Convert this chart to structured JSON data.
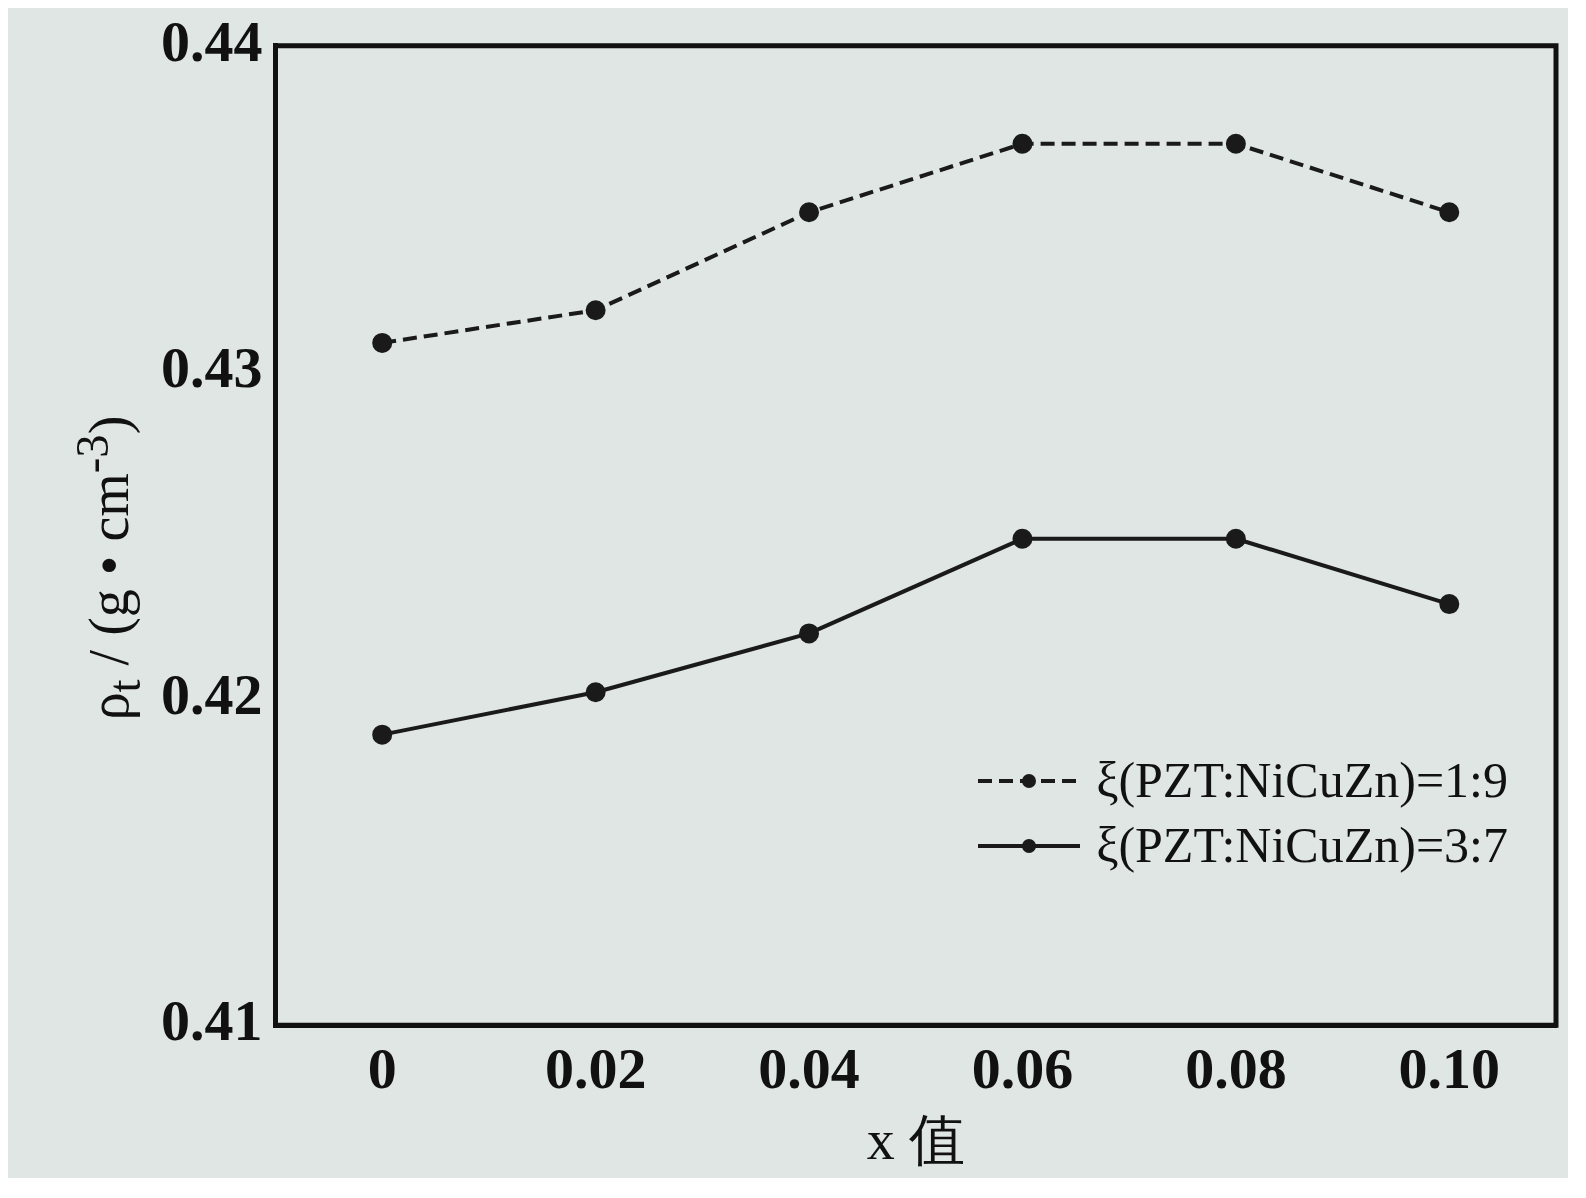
{
  "chart_data": {
    "type": "line",
    "xlabel": "x 值",
    "ylabel": "ρ$_{t}$ / (g • cm$^{-3}$)",
    "xlim": [
      -0.01,
      0.11
    ],
    "xticks": [
      0,
      0.02,
      0.04,
      0.06,
      0.08,
      {
        "value": 0.1,
        "label": "0.10"
      }
    ],
    "ylim": [
      0.41,
      0.44
    ],
    "yticks": [
      0.41,
      0.42,
      0.43,
      0.44
    ],
    "grid": false,
    "legend": "bottom right",
    "marker": "circle",
    "series": [
      {
        "name": "ξ(PZT:NiCuZn)=1:9",
        "color": "#1a1a1a",
        "line_style": "dashed",
        "x": [
          0,
          0.02,
          0.04,
          0.06,
          0.08,
          0.1
        ],
        "values": [
          0.4309,
          0.4319,
          0.4349,
          0.437,
          0.437,
          0.4349
        ]
      },
      {
        "name": "ξ(PZT:NiCuZn)=3:7",
        "color": "#1a1a1a",
        "line_style": "solid",
        "x": [
          0,
          0.02,
          0.04,
          0.06,
          0.08,
          0.1
        ],
        "values": [
          0.4189,
          0.4202,
          0.422,
          0.4249,
          0.4249,
          0.4229
        ]
      }
    ]
  }
}
